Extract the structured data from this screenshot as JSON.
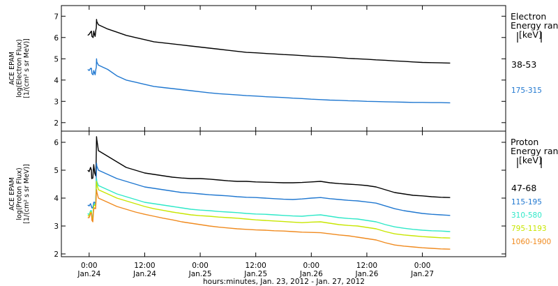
{
  "chart_data": [
    {
      "type": "line",
      "ylabel_lines": [
        "ACE EPAM",
        "log(Electron Flux)",
        "[1/(cm² s sr MeV)]"
      ],
      "ylim": [
        1.6,
        7.5
      ],
      "yticks": [
        2,
        3,
        4,
        5,
        6,
        7
      ],
      "legend_title": [
        "Electron",
        "Energy range",
        "[keV]"
      ],
      "series": [
        {
          "name": "38-53",
          "color": "#000000",
          "x": [
            -0.3,
            0.0,
            0.3,
            0.5,
            0.6,
            0.85,
            1.0,
            1.15,
            1.3,
            1.45,
            1.55,
            1.6,
            1.65,
            2.0,
            4.0,
            6.0,
            8.0,
            10.0,
            12.0,
            14.0,
            16.0,
            18.0,
            20.0,
            22.0,
            24.0,
            26.0,
            28.0,
            30.0,
            32.0,
            34.0,
            36.0,
            38.0,
            40.0,
            42.0,
            44.0,
            46.0,
            48.0,
            50.0,
            52.0,
            54.0,
            56.0,
            58.0,
            60.0,
            62.0,
            64.0,
            66.0,
            68.0,
            70.0,
            72.0,
            74.0,
            76.0,
            78.0
          ],
          "values": [
            6.1,
            6.15,
            6.25,
            6.3,
            6.05,
            6.0,
            6.3,
            6.15,
            6.05,
            6.35,
            6.45,
            6.85,
            6.75,
            6.6,
            6.4,
            6.25,
            6.1,
            6.0,
            5.9,
            5.8,
            5.75,
            5.7,
            5.65,
            5.6,
            5.55,
            5.5,
            5.45,
            5.4,
            5.35,
            5.3,
            5.28,
            5.25,
            5.23,
            5.2,
            5.18,
            5.15,
            5.12,
            5.1,
            5.08,
            5.05,
            5.02,
            5.0,
            4.98,
            4.95,
            4.93,
            4.9,
            4.88,
            4.85,
            4.83,
            4.82,
            4.81,
            4.8
          ]
        },
        {
          "name": "175-315",
          "color": "#1f77d0",
          "x": [
            -0.3,
            0.0,
            0.3,
            0.5,
            0.6,
            0.85,
            1.0,
            1.15,
            1.3,
            1.45,
            1.55,
            1.6,
            1.65,
            2.0,
            4.0,
            6.0,
            8.0,
            10.0,
            12.0,
            14.0,
            16.0,
            18.0,
            20.0,
            22.0,
            24.0,
            26.0,
            28.0,
            30.0,
            32.0,
            34.0,
            36.0,
            38.0,
            40.0,
            42.0,
            44.0,
            46.0,
            48.0,
            50.0,
            52.0,
            54.0,
            56.0,
            58.0,
            60.0,
            62.0,
            64.0,
            66.0,
            68.0,
            70.0,
            72.0,
            74.0,
            76.0,
            78.0
          ],
          "values": [
            4.5,
            4.45,
            4.55,
            4.55,
            4.3,
            4.25,
            4.45,
            4.35,
            4.25,
            4.5,
            4.6,
            5.0,
            4.85,
            4.7,
            4.5,
            4.2,
            4.0,
            3.9,
            3.8,
            3.7,
            3.65,
            3.6,
            3.55,
            3.5,
            3.45,
            3.4,
            3.36,
            3.33,
            3.3,
            3.27,
            3.25,
            3.22,
            3.2,
            3.18,
            3.15,
            3.13,
            3.1,
            3.08,
            3.06,
            3.05,
            3.03,
            3.02,
            3.0,
            2.99,
            2.98,
            2.97,
            2.96,
            2.95,
            2.95,
            2.94,
            2.94,
            2.93
          ]
        }
      ]
    },
    {
      "type": "line",
      "ylabel_lines": [
        "ACE EPAM",
        "log(Proton Flux)",
        "[1/(cm² s sr MeV)]"
      ],
      "ylim": [
        1.9,
        6.4
      ],
      "yticks": [
        2,
        3,
        4,
        5,
        6
      ],
      "legend_title": [
        "Proton",
        "Energy range",
        "[keV]"
      ],
      "series": [
        {
          "name": "47-68",
          "color": "#000000",
          "x": [
            -0.3,
            0.0,
            0.3,
            0.5,
            0.55,
            0.8,
            0.9,
            1.0,
            1.2,
            1.4,
            1.5,
            1.55,
            1.6,
            1.65,
            2.0,
            4.0,
            6.0,
            8.0,
            10.0,
            12.0,
            14.0,
            16.0,
            18.0,
            20.0,
            22.0,
            24.0,
            26.0,
            28.0,
            30.0,
            32.0,
            34.0,
            36.0,
            38.0,
            40.0,
            42.0,
            44.0,
            46.0,
            48.0,
            50.0,
            52.0,
            54.0,
            56.0,
            58.0,
            60.0,
            62.0,
            64.0,
            66.0,
            68.0,
            70.0,
            72.0,
            74.0,
            76.0,
            78.0
          ],
          "values": [
            5.0,
            4.95,
            5.1,
            5.0,
            4.7,
            4.72,
            5.0,
            5.2,
            4.9,
            4.8,
            5.2,
            5.7,
            6.2,
            6.1,
            5.7,
            5.5,
            5.3,
            5.1,
            5.0,
            4.9,
            4.85,
            4.8,
            4.75,
            4.72,
            4.7,
            4.7,
            4.68,
            4.65,
            4.62,
            4.6,
            4.6,
            4.58,
            4.57,
            4.56,
            4.55,
            4.55,
            4.56,
            4.58,
            4.6,
            4.55,
            4.52,
            4.5,
            4.48,
            4.45,
            4.4,
            4.3,
            4.2,
            4.15,
            4.1,
            4.08,
            4.05,
            4.03,
            4.02
          ]
        },
        {
          "name": "115-195",
          "color": "#1f77d0",
          "x": [
            -0.3,
            0.0,
            0.3,
            0.5,
            0.6,
            0.8,
            0.9,
            1.0,
            1.2,
            1.4,
            1.5,
            1.55,
            1.6,
            1.65,
            2.0,
            4.0,
            6.0,
            8.0,
            10.0,
            12.0,
            14.0,
            16.0,
            18.0,
            20.0,
            22.0,
            24.0,
            26.0,
            28.0,
            30.0,
            32.0,
            34.0,
            36.0,
            38.0,
            40.0,
            42.0,
            44.0,
            46.0,
            48.0,
            50.0,
            52.0,
            54.0,
            56.0,
            58.0,
            60.0,
            62.0,
            64.0,
            66.0,
            68.0,
            70.0,
            72.0,
            74.0,
            76.0,
            78.0
          ],
          "values": [
            3.75,
            3.72,
            3.8,
            3.7,
            3.65,
            3.65,
            3.75,
            3.85,
            3.85,
            3.75,
            4.3,
            4.9,
            5.25,
            5.15,
            5.0,
            4.85,
            4.7,
            4.6,
            4.5,
            4.4,
            4.35,
            4.3,
            4.25,
            4.2,
            4.18,
            4.15,
            4.12,
            4.1,
            4.08,
            4.05,
            4.03,
            4.02,
            4.0,
            3.98,
            3.96,
            3.95,
            3.97,
            4.0,
            4.02,
            3.98,
            3.95,
            3.92,
            3.9,
            3.86,
            3.82,
            3.72,
            3.62,
            3.55,
            3.5,
            3.45,
            3.42,
            3.4,
            3.38
          ]
        },
        {
          "name": "310-580",
          "color": "#2ee8c8",
          "x": [
            -0.3,
            0.0,
            0.3,
            0.5,
            0.6,
            0.8,
            0.9,
            1.0,
            1.2,
            1.4,
            1.5,
            1.55,
            1.6,
            1.65,
            2.0,
            4.0,
            6.0,
            8.0,
            10.0,
            12.0,
            14.0,
            16.0,
            18.0,
            20.0,
            22.0,
            24.0,
            26.0,
            28.0,
            30.0,
            32.0,
            34.0,
            36.0,
            38.0,
            40.0,
            42.0,
            44.0,
            46.0,
            48.0,
            50.0,
            52.0,
            54.0,
            56.0,
            58.0,
            60.0,
            62.0,
            64.0,
            66.0,
            68.0,
            70.0,
            72.0,
            74.0,
            76.0,
            78.0
          ],
          "values": [
            3.45,
            3.4,
            3.55,
            3.55,
            3.35,
            3.3,
            3.55,
            3.75,
            3.8,
            3.75,
            4.2,
            4.55,
            4.7,
            4.6,
            4.45,
            4.3,
            4.15,
            4.05,
            3.95,
            3.85,
            3.8,
            3.75,
            3.7,
            3.65,
            3.6,
            3.57,
            3.55,
            3.52,
            3.5,
            3.48,
            3.45,
            3.43,
            3.42,
            3.4,
            3.38,
            3.36,
            3.35,
            3.38,
            3.4,
            3.35,
            3.3,
            3.27,
            3.25,
            3.2,
            3.15,
            3.05,
            2.97,
            2.92,
            2.88,
            2.85,
            2.83,
            2.82,
            2.8
          ]
        },
        {
          "name": "795-1193",
          "color": "#c8e600",
          "x": [
            -0.3,
            0.0,
            0.3,
            0.5,
            0.6,
            0.8,
            0.9,
            1.0,
            1.2,
            1.4,
            1.5,
            1.55,
            1.6,
            1.65,
            2.0,
            4.0,
            6.0,
            8.0,
            10.0,
            12.0,
            14.0,
            16.0,
            18.0,
            20.0,
            22.0,
            24.0,
            26.0,
            28.0,
            30.0,
            32.0,
            34.0,
            36.0,
            38.0,
            40.0,
            42.0,
            44.0,
            46.0,
            48.0,
            50.0,
            52.0,
            54.0,
            56.0,
            58.0,
            60.0,
            62.0,
            64.0,
            66.0,
            68.0,
            70.0,
            72.0,
            74.0,
            76.0,
            78.0
          ],
          "values": [
            3.38,
            3.35,
            3.5,
            3.5,
            3.28,
            3.22,
            3.5,
            3.72,
            3.75,
            3.72,
            4.1,
            4.45,
            4.6,
            4.5,
            4.3,
            4.15,
            4.0,
            3.9,
            3.8,
            3.7,
            3.62,
            3.56,
            3.5,
            3.45,
            3.4,
            3.37,
            3.35,
            3.32,
            3.3,
            3.28,
            3.25,
            3.22,
            3.2,
            3.18,
            3.16,
            3.14,
            3.12,
            3.14,
            3.15,
            3.1,
            3.05,
            3.02,
            3.0,
            2.95,
            2.9,
            2.8,
            2.72,
            2.68,
            2.65,
            2.62,
            2.6,
            2.58,
            2.57
          ]
        },
        {
          "name": "1060-1900",
          "color": "#f08a1e",
          "x": [
            -0.3,
            0.0,
            0.3,
            0.5,
            0.6,
            0.8,
            0.9,
            1.0,
            1.2,
            1.4,
            1.5,
            1.55,
            1.6,
            1.65,
            2.0,
            4.0,
            6.0,
            8.0,
            10.0,
            12.0,
            14.0,
            16.0,
            18.0,
            20.0,
            22.0,
            24.0,
            26.0,
            28.0,
            30.0,
            32.0,
            34.0,
            36.0,
            38.0,
            40.0,
            42.0,
            44.0,
            46.0,
            48.0,
            50.0,
            52.0,
            54.0,
            56.0,
            58.0,
            60.0,
            62.0,
            64.0,
            66.0,
            68.0,
            70.0,
            72.0,
            74.0,
            76.0,
            78.0
          ],
          "values": [
            3.3,
            3.3,
            3.45,
            3.45,
            3.2,
            3.15,
            3.45,
            3.6,
            3.65,
            3.62,
            3.95,
            4.2,
            4.3,
            4.22,
            4.0,
            3.85,
            3.7,
            3.6,
            3.5,
            3.42,
            3.35,
            3.28,
            3.22,
            3.15,
            3.1,
            3.05,
            3.0,
            2.96,
            2.93,
            2.9,
            2.88,
            2.86,
            2.85,
            2.83,
            2.82,
            2.8,
            2.78,
            2.77,
            2.76,
            2.72,
            2.68,
            2.65,
            2.6,
            2.55,
            2.5,
            2.4,
            2.32,
            2.28,
            2.25,
            2.22,
            2.2,
            2.18,
            2.17
          ]
        }
      ]
    }
  ],
  "x_axis": {
    "xlim": [
      -6,
      90
    ],
    "ticks": [
      {
        "x": 0,
        "time": "0:00",
        "date": "Jan.24"
      },
      {
        "x": 12,
        "time": "12:00",
        "date": "Jan.24"
      },
      {
        "x": 24,
        "time": "0:00",
        "date": "Jan.25"
      },
      {
        "x": 36,
        "time": "12:00",
        "date": "Jan.25"
      },
      {
        "x": 48,
        "time": "0:00",
        "date": "Jan.26"
      },
      {
        "x": 60,
        "time": "12:00",
        "date": "Jan.26"
      },
      {
        "x": 72,
        "time": "0:00",
        "date": "Jan.27"
      }
    ],
    "xlabel": "hours:minutes, Jan. 23, 2012 - Jan. 27, 2012"
  },
  "colors": {
    "axes": "#000000",
    "background": "#ffffff"
  }
}
